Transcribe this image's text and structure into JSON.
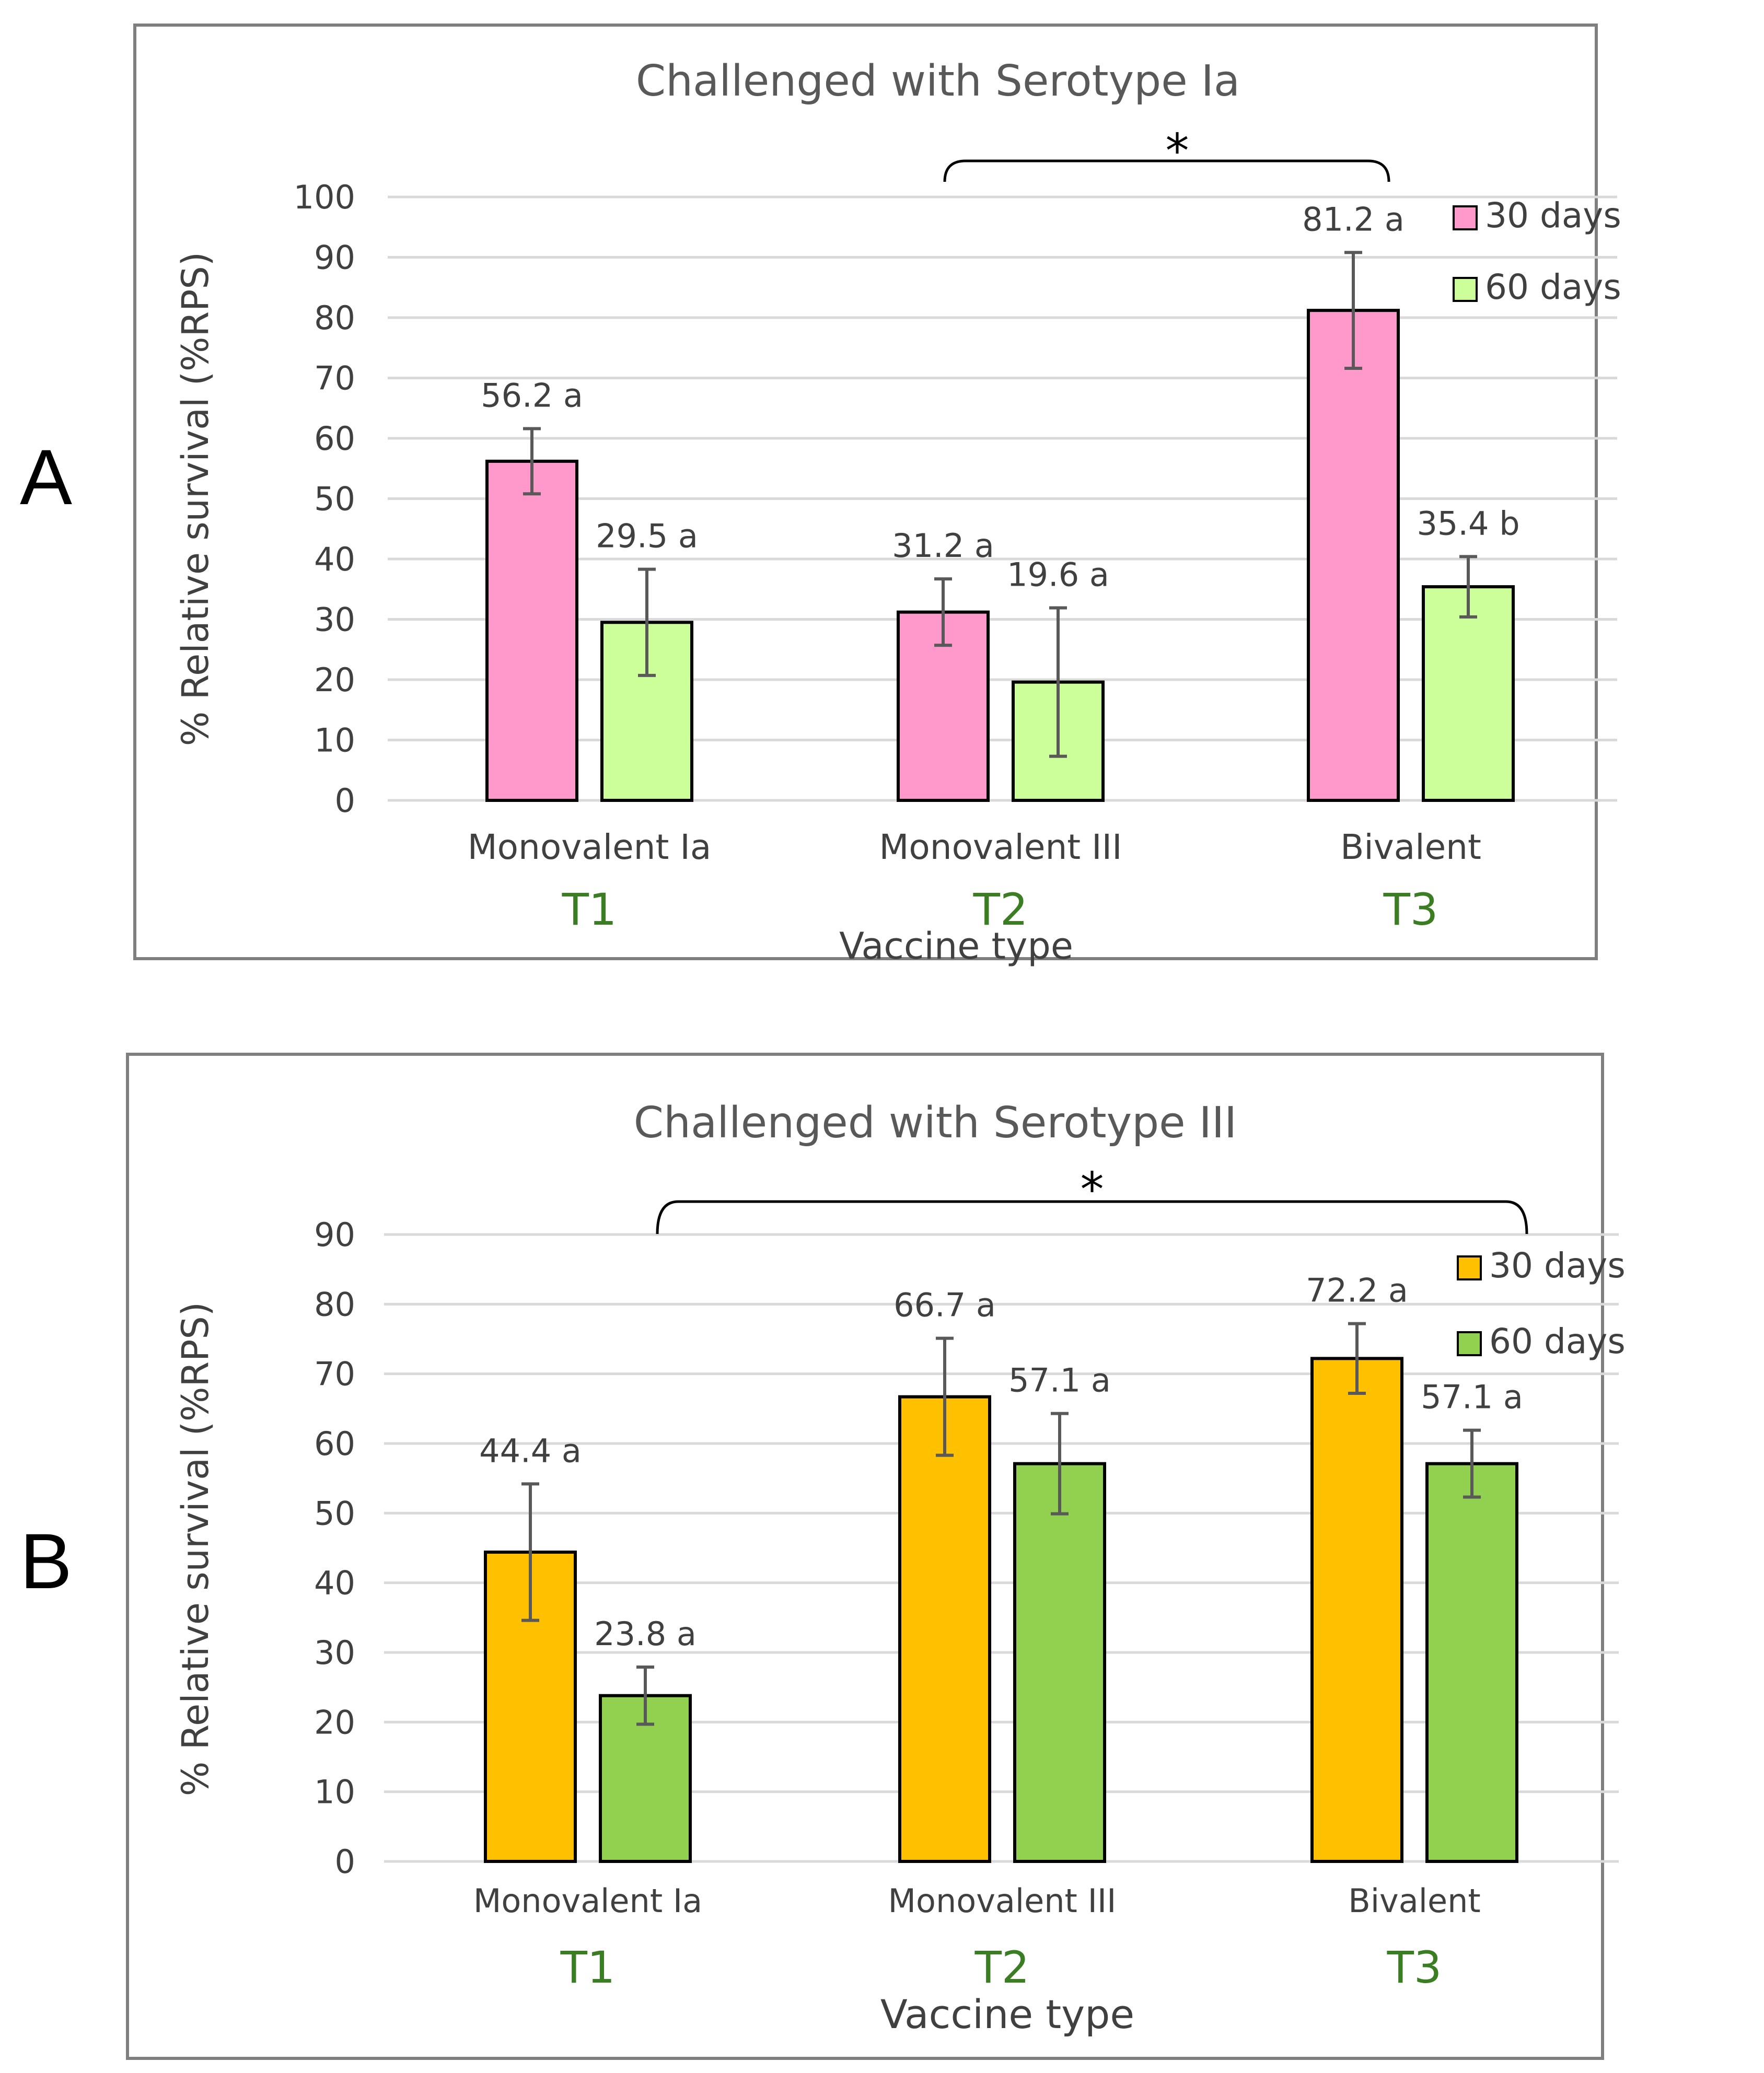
{
  "chart_data": [
    {
      "panel_letter": "A",
      "type": "bar",
      "title": "Challenged with Serotype Ia",
      "xlabel": "Vaccine type",
      "ylabel": "% Relative survival (%RPS)",
      "ylim": [
        0,
        100
      ],
      "ytick_step": 10,
      "grid": true,
      "legend_position": "top-right",
      "categories": [
        "Monovalent Ia",
        "Monovalent III",
        "Bivalent"
      ],
      "groups": [
        "T1",
        "T2",
        "T3"
      ],
      "series": [
        {
          "name": "30 days",
          "color": "#ff99cc",
          "values": [
            56.2,
            31.2,
            81.2
          ],
          "errors": [
            5.4,
            5.5,
            9.6
          ],
          "labels": [
            "56.2 a",
            "31.2 a",
            "81.2 a"
          ]
        },
        {
          "name": "60 days",
          "color": "#ccff99",
          "values": [
            29.5,
            19.6,
            35.4
          ],
          "errors": [
            8.8,
            12.3,
            5.0
          ],
          "labels": [
            "29.5 a",
            "19.6 a",
            "35.4 b"
          ]
        }
      ],
      "significance": {
        "from_category": 1,
        "to_category": 2,
        "label": "*"
      }
    },
    {
      "panel_letter": "B",
      "type": "bar",
      "title": "Challenged with Serotype III",
      "xlabel": "Vaccine type",
      "ylabel": "% Relative survival (%RPS)",
      "ylim": [
        0,
        90
      ],
      "ytick_step": 10,
      "grid": true,
      "legend_position": "top-right",
      "categories": [
        "Monovalent Ia",
        "Monovalent III",
        "Bivalent"
      ],
      "groups": [
        "T1",
        "T2",
        "T3"
      ],
      "series": [
        {
          "name": "30 days",
          "color": "#ffc000",
          "values": [
            44.4,
            66.7,
            72.2
          ],
          "errors": [
            9.8,
            8.4,
            5.0
          ],
          "labels": [
            "44.4 a",
            "66.7 a",
            "72.2 a"
          ]
        },
        {
          "name": "60 days",
          "color": "#92d050",
          "values": [
            23.8,
            57.1,
            57.1
          ],
          "errors": [
            4.1,
            7.2,
            4.8
          ],
          "labels": [
            "23.8 a",
            "57.1 a",
            "57.1 a"
          ]
        }
      ],
      "significance": {
        "from_category": 0,
        "to_category": 2,
        "label": "*"
      }
    }
  ]
}
